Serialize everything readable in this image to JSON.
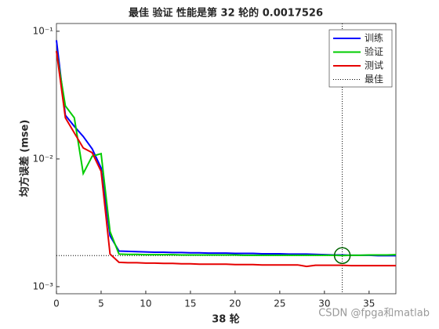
{
  "chart_data": {
    "type": "line",
    "title": "最佳 验证 性能是第 32 轮的 0.0017526",
    "xlabel": "38 轮",
    "ylabel": "均方误差 (mse)",
    "log_y": true,
    "x": [
      0,
      1,
      2,
      3,
      4,
      5,
      6,
      7,
      8,
      9,
      10,
      11,
      12,
      13,
      14,
      15,
      16,
      17,
      18,
      19,
      20,
      21,
      22,
      23,
      24,
      25,
      26,
      27,
      28,
      29,
      30,
      31,
      32,
      33,
      34,
      35,
      36,
      37,
      38
    ],
    "series": [
      {
        "name": "训练",
        "color": "#0000ff",
        "values": [
          0.085,
          0.022,
          0.018,
          0.015,
          0.012,
          0.0085,
          0.0025,
          0.0019,
          0.00189,
          0.00188,
          0.00187,
          0.00186,
          0.00186,
          0.00185,
          0.00185,
          0.00184,
          0.00184,
          0.00183,
          0.00183,
          0.00183,
          0.00182,
          0.00182,
          0.00182,
          0.00181,
          0.00181,
          0.00181,
          0.0018,
          0.0018,
          0.0018,
          0.00179,
          0.00178,
          0.00177,
          0.00177,
          0.00176,
          0.00176,
          0.00176,
          0.00175,
          0.00175,
          0.00175
        ]
      },
      {
        "name": "验证",
        "color": "#00cc00",
        "values": [
          0.07,
          0.026,
          0.021,
          0.0077,
          0.0105,
          0.011,
          0.0027,
          0.0018,
          0.00179,
          0.00179,
          0.00178,
          0.00178,
          0.00178,
          0.00178,
          0.00177,
          0.00177,
          0.00177,
          0.00177,
          0.00177,
          0.00177,
          0.00177,
          0.00176,
          0.00176,
          0.00176,
          0.00176,
          0.00176,
          0.00176,
          0.00176,
          0.00176,
          0.00176,
          0.00176,
          0.00176,
          0.0017526,
          0.00176,
          0.00176,
          0.00177,
          0.00177,
          0.00177,
          0.00178
        ]
      },
      {
        "name": "测试",
        "color": "#e60000",
        "values": [
          0.07,
          0.021,
          0.016,
          0.0122,
          0.0112,
          0.008,
          0.0018,
          0.00155,
          0.00154,
          0.00154,
          0.00153,
          0.00153,
          0.00152,
          0.00152,
          0.00151,
          0.00151,
          0.0015,
          0.0015,
          0.0015,
          0.0015,
          0.00149,
          0.00149,
          0.00149,
          0.00148,
          0.00148,
          0.00148,
          0.00148,
          0.00148,
          0.00144,
          0.00147,
          0.00147,
          0.00147,
          0.00147,
          0.00146,
          0.00146,
          0.00146,
          0.00146,
          0.00146,
          0.00146
        ]
      }
    ],
    "best": {
      "name": "最佳",
      "x": 32,
      "y": 0.0017526,
      "color": "#000000"
    },
    "xlim": [
      0,
      38
    ],
    "xticks": [
      0,
      5,
      10,
      15,
      20,
      25,
      30,
      35
    ],
    "ylim": [
      0.00088,
      0.115
    ],
    "yticks": [
      {
        "value": 0.001,
        "label": "10⁻³"
      },
      {
        "value": 0.01,
        "label": "10⁻²"
      },
      {
        "value": 0.1,
        "label": "10⁻¹"
      }
    ],
    "legend": "upper right",
    "watermark": "CSDN @fpga和matlab"
  }
}
